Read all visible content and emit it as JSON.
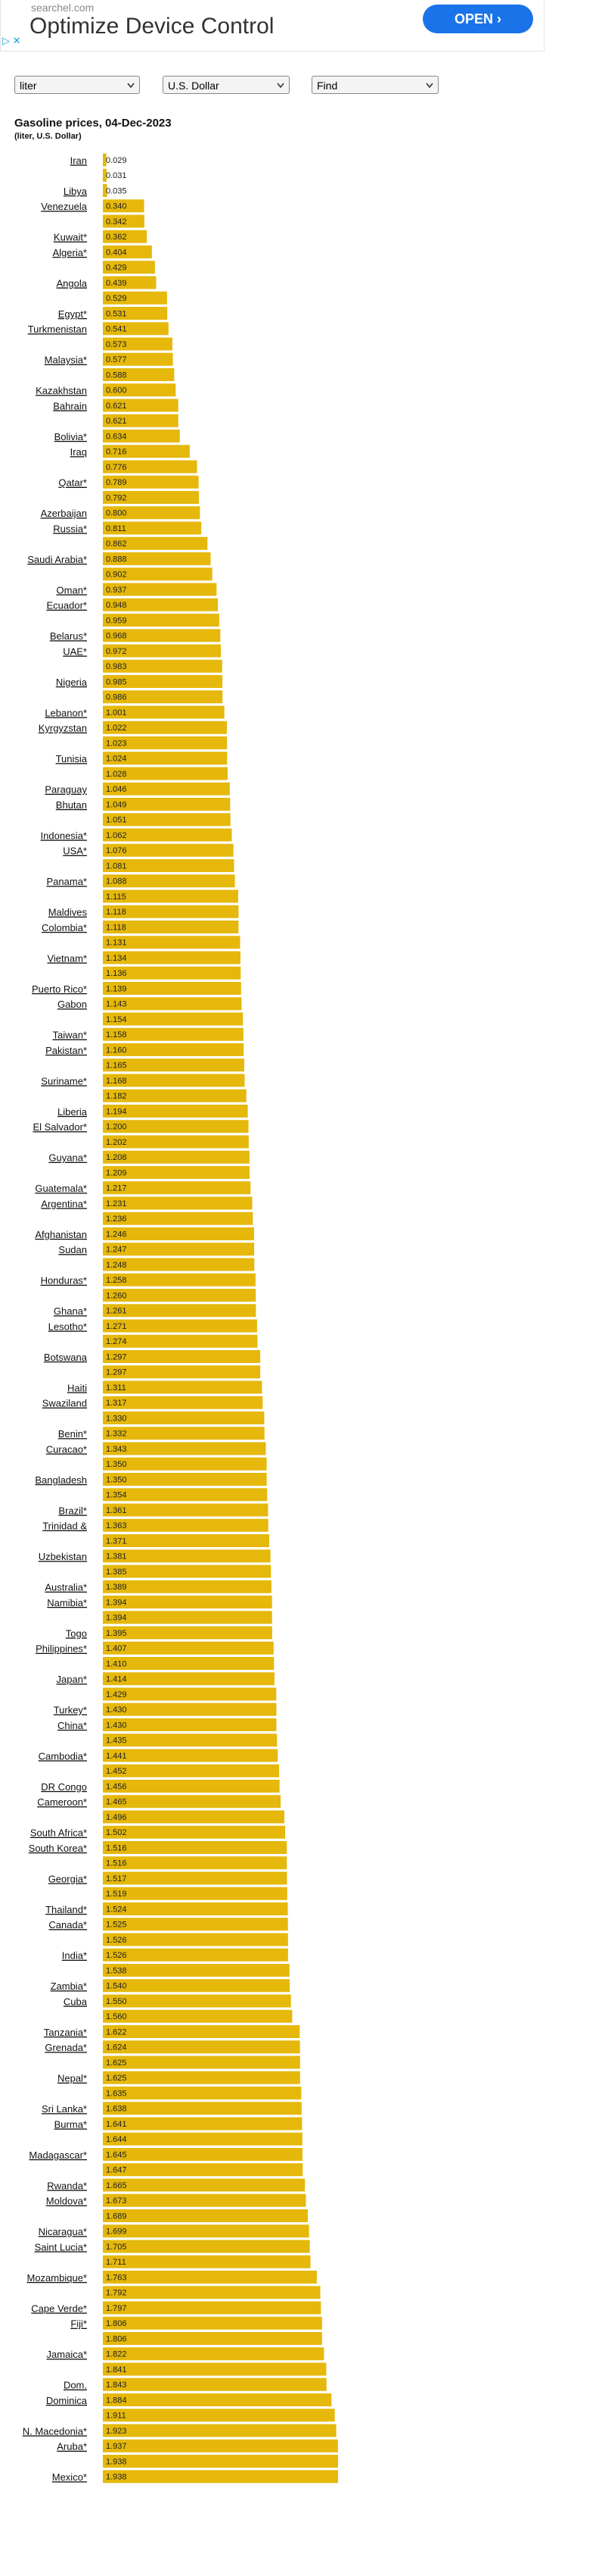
{
  "ad": {
    "domain": "searchel.com",
    "headline": "Optimize Device Control",
    "button": "OPEN"
  },
  "controls": {
    "unit": "liter",
    "currency": "U.S. Dollar",
    "find": "Find"
  },
  "chart_data": {
    "type": "barh",
    "title": "Gasoline prices, 04-Dec-2023",
    "subtitle": "(liter, U.S. Dollar)",
    "color": "#e5b80b",
    "categories": [
      "Iran",
      null,
      "Libya",
      "Venezuela",
      null,
      "Kuwait*",
      "Algeria*",
      null,
      "Angola",
      null,
      "Egypt*",
      "Turkmenistan",
      null,
      "Malaysia*",
      null,
      "Kazakhstan",
      "Bahrain",
      null,
      "Bolivia*",
      "Iraq",
      null,
      "Qatar*",
      null,
      "Azerbaijan",
      "Russia*",
      null,
      "Saudi Arabia*",
      null,
      "Oman*",
      "Ecuador*",
      null,
      "Belarus*",
      "UAE*",
      null,
      "Nigeria",
      null,
      "Lebanon*",
      "Kyrgyzstan",
      null,
      "Tunisia",
      null,
      "Paraguay",
      "Bhutan",
      null,
      "Indonesia*",
      "USA*",
      null,
      "Panama*",
      null,
      "Maldives",
      "Colombia*",
      null,
      "Vietnam*",
      null,
      "Puerto Rico*",
      "Gabon",
      null,
      "Taiwan*",
      "Pakistan*",
      null,
      "Suriname*",
      null,
      "Liberia",
      "El Salvador*",
      null,
      "Guyana*",
      null,
      "Guatemala*",
      "Argentina*",
      null,
      "Afghanistan",
      "Sudan",
      null,
      "Honduras*",
      null,
      "Ghana*",
      "Lesotho*",
      null,
      "Botswana",
      null,
      "Haiti",
      "Swaziland",
      null,
      "Benin*",
      "Curacao*",
      null,
      "Bangladesh",
      null,
      "Brazil*",
      "Trinidad &",
      null,
      "Uzbekistan",
      null,
      "Australia*",
      "Namibia*",
      null,
      "Togo",
      "Philippines*",
      null,
      "Japan*",
      null,
      "Turkey*",
      "China*",
      null,
      "Cambodia*",
      null,
      "DR Congo",
      "Cameroon*",
      null,
      "South Africa*",
      "South Korea*",
      null,
      "Georgia*",
      null,
      "Thailand*",
      "Canada*",
      null,
      "India*",
      null,
      "Zambia*",
      "Cuba",
      null,
      "Tanzania*",
      "Grenada*",
      null,
      "Nepal*",
      null,
      "Sri Lanka*",
      "Burma*",
      null,
      "Madagascar*",
      null,
      "Rwanda*",
      "Moldova*",
      null,
      "Nicaragua*",
      "Saint Lucia*",
      null,
      "Mozambique*",
      null,
      "Cape Verde*",
      "Fiji*",
      null,
      "Jamaica*",
      null,
      "Dom.",
      "Dominica",
      null,
      "N. Macedonia*",
      "Aruba*",
      null,
      "Mexico*"
    ],
    "values": [
      0.029,
      0.031,
      0.035,
      0.34,
      0.342,
      0.362,
      0.404,
      0.429,
      0.439,
      0.529,
      0.531,
      0.541,
      0.573,
      0.577,
      0.588,
      0.6,
      0.621,
      0.621,
      0.634,
      0.716,
      0.776,
      0.789,
      0.792,
      0.8,
      0.811,
      0.862,
      0.888,
      0.902,
      0.937,
      0.948,
      0.959,
      0.968,
      0.972,
      0.983,
      0.985,
      0.986,
      1.001,
      1.022,
      1.023,
      1.024,
      1.028,
      1.046,
      1.049,
      1.051,
      1.062,
      1.076,
      1.081,
      1.088,
      1.115,
      1.118,
      1.118,
      1.131,
      1.134,
      1.136,
      1.139,
      1.143,
      1.154,
      1.158,
      1.16,
      1.165,
      1.168,
      1.182,
      1.194,
      1.2,
      1.202,
      1.208,
      1.209,
      1.217,
      1.231,
      1.236,
      1.246,
      1.247,
      1.248,
      1.258,
      1.26,
      1.261,
      1.271,
      1.274,
      1.297,
      1.297,
      1.311,
      1.317,
      1.33,
      1.332,
      1.343,
      1.35,
      1.35,
      1.354,
      1.361,
      1.363,
      1.371,
      1.381,
      1.385,
      1.389,
      1.394,
      1.394,
      1.395,
      1.407,
      1.41,
      1.414,
      1.429,
      1.43,
      1.43,
      1.435,
      1.441,
      1.452,
      1.456,
      1.465,
      1.496,
      1.502,
      1.516,
      1.516,
      1.517,
      1.519,
      1.524,
      1.525,
      1.526,
      1.526,
      1.538,
      1.54,
      1.55,
      1.56,
      1.622,
      1.624,
      1.625,
      1.625,
      1.635,
      1.638,
      1.641,
      1.644,
      1.645,
      1.647,
      1.665,
      1.673,
      1.689,
      1.699,
      1.705,
      1.711,
      1.763,
      1.792,
      1.797,
      1.806,
      1.806,
      1.822,
      1.841,
      1.843,
      1.884,
      1.911,
      1.923,
      1.937,
      1.938,
      1.938
    ],
    "value_labels": [
      "0.029",
      "0.031",
      "0.035",
      "0.340",
      "0.342",
      "0.362",
      "0.404",
      "0.429",
      "0.439",
      "0.529",
      "0.531",
      "0.541",
      "0.573",
      "0.577",
      "0.588",
      "0.600",
      "0.621",
      "0.621",
      "0.634",
      "0.716",
      "0.776",
      "0.789",
      "0.792",
      "0.800",
      "0.811",
      "0.862",
      "0.888",
      "0.902",
      "0.937",
      "0.948",
      "0.959",
      "0.968",
      "0.972",
      "0.983",
      "0.985",
      "0.986",
      "1.001",
      "1.022",
      "1.023",
      "1.024",
      "1.028",
      "1.046",
      "1.049",
      "1.051",
      "1.062",
      "1.076",
      "1.081",
      "1.088",
      "1.115",
      "1.118",
      "1.118",
      "1.131",
      "1.134",
      "1.136",
      "1.139",
      "1.143",
      "1.154",
      "1.158",
      "1.160",
      "1.165",
      "1.168",
      "1.182",
      "1.194",
      "1.200",
      "1.202",
      "1.208",
      "1.209",
      "1.217",
      "1.231",
      "1.236",
      "1.246",
      "1.247",
      "1.248",
      "1.258",
      "1.260",
      "1.261",
      "1.271",
      "1.274",
      "1.297",
      "1.297",
      "1.311",
      "1.317",
      "1.330",
      "1.332",
      "1.343",
      "1.350",
      "1.350",
      "1.354",
      "1.361",
      "1.363",
      "1.371",
      "1.381",
      "1.385",
      "1.389",
      "1.394",
      "1.394",
      "1.395",
      "1.407",
      "1.410",
      "1.414",
      "1.429",
      "1.430",
      "1.430",
      "1.435",
      "1.441",
      "1.452",
      "1.456",
      "1.465",
      "1.496",
      "1.502",
      "1.516",
      "1.516",
      "1.517",
      "1.519",
      "1.524",
      "1.525",
      "1.526",
      "1.526",
      "1.538",
      "1.540",
      "1.550",
      "1.560",
      "1.622",
      "1.624",
      "1.625",
      "1.625",
      "1.635",
      "1.638",
      "1.641",
      "1.644",
      "1.645",
      "1.647",
      "1.665",
      "1.673",
      "1.689",
      "1.699",
      "1.705",
      "1.711",
      "1.763",
      "1.792",
      "1.797",
      "1.806",
      "1.806",
      "1.822",
      "1.841",
      "1.843",
      "1.884",
      "1.911",
      "1.923",
      "1.937",
      "1.938",
      "1.938"
    ]
  }
}
